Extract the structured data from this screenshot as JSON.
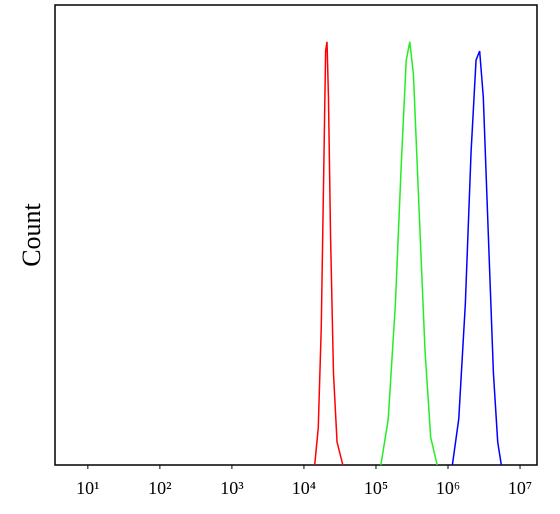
{
  "chart_data": {
    "type": "line",
    "ylabel": "Count",
    "xscale": "log",
    "xlim": [
      3.5,
      17200000
    ],
    "ylim": [
      0,
      100
    ],
    "xticks": [
      {
        "value": 10,
        "label": "10¹"
      },
      {
        "value": 100,
        "label": "10²"
      },
      {
        "value": 1000,
        "label": "10³"
      },
      {
        "value": 10000,
        "label": "10⁴"
      },
      {
        "value": 100000,
        "label": "10⁵"
      },
      {
        "value": 1000000,
        "label": "10⁶"
      },
      {
        "value": 10000000,
        "label": "10⁷"
      }
    ],
    "series": [
      {
        "color": "#ff0000",
        "x": [
          14100,
          15800,
          17400,
          19100,
          20000,
          20900,
          21900,
          23400,
          25700,
          28800,
          34700
        ],
        "values": [
          0,
          8,
          30,
          70,
          90,
          92,
          80,
          50,
          20,
          5,
          0
        ]
      },
      {
        "color": "#22ee22",
        "x": [
          117000,
          148000,
          186000,
          224000,
          263000,
          295000,
          331000,
          398000,
          479000,
          575000,
          708000
        ],
        "values": [
          0,
          10,
          35,
          65,
          88,
          92,
          85,
          55,
          25,
          6,
          0
        ]
      },
      {
        "color": "#0000ff",
        "x": [
          1150000,
          1410000,
          1740000,
          2090000,
          2450000,
          2750000,
          3090000,
          3630000,
          4270000,
          4900000,
          5500000
        ],
        "values": [
          0,
          10,
          35,
          68,
          88,
          90,
          80,
          50,
          20,
          5,
          0
        ]
      }
    ]
  }
}
